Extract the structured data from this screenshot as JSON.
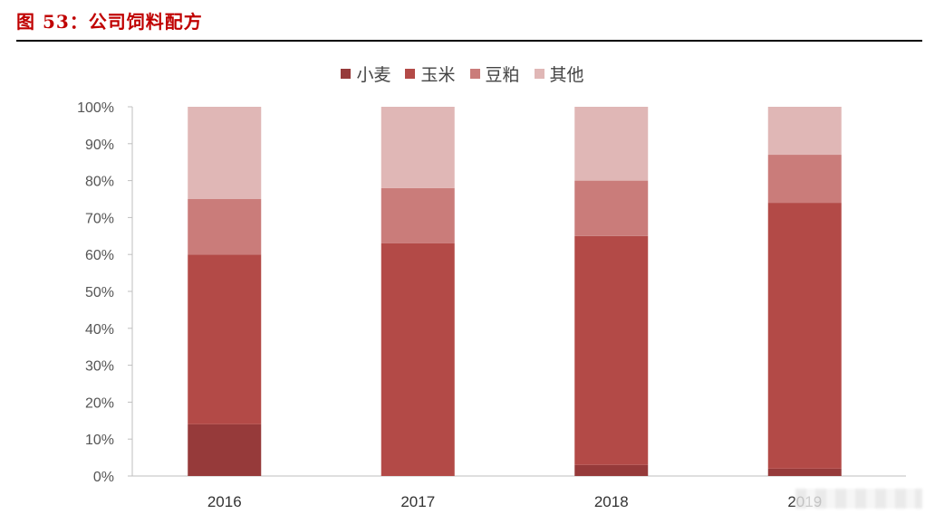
{
  "header": {
    "title": "图 53：公司饲料配方"
  },
  "colors": {
    "title": "#c00000",
    "axis": "#bfbfbf"
  },
  "chart_data": {
    "type": "bar",
    "stacked": true,
    "categories": [
      "2016",
      "2017",
      "2018",
      "2019"
    ],
    "series": [
      {
        "name": "小麦",
        "color": "#963a3a",
        "values": [
          14,
          0,
          3,
          2
        ]
      },
      {
        "name": "玉米",
        "color": "#b34a47",
        "values": [
          46,
          63,
          62,
          72
        ]
      },
      {
        "name": "豆粕",
        "color": "#ca7c7a",
        "values": [
          15,
          15,
          15,
          13
        ]
      },
      {
        "name": "其他",
        "color": "#e0b7b6",
        "values": [
          25,
          22,
          20,
          13
        ]
      }
    ],
    "ylim": [
      0,
      100
    ],
    "yticks": [
      "0%",
      "10%",
      "20%",
      "30%",
      "40%",
      "50%",
      "60%",
      "70%",
      "80%",
      "90%",
      "100%"
    ],
    "legend_position": "top-center",
    "grid": false
  }
}
